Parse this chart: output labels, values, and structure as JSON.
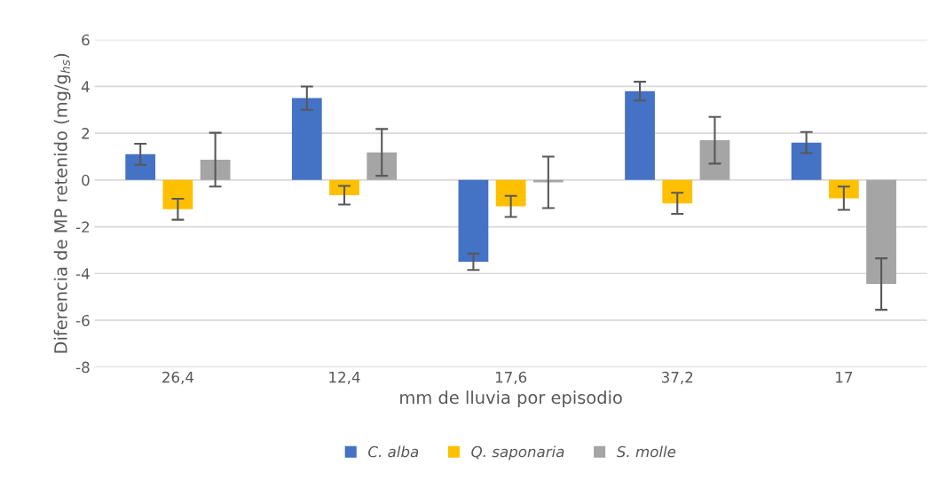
{
  "chart_data": {
    "type": "bar",
    "xlabel": "mm de lluvia por episodio",
    "ylabel": "Diferencia de MP retenido (mg/g$_{hs}$)",
    "categories": [
      "26,4",
      "12,4",
      "17,6",
      "37,2",
      "17"
    ],
    "series": [
      {
        "name": "C. alba",
        "color": "#4472c4",
        "values": [
          1.1,
          3.5,
          -3.5,
          3.8,
          1.6
        ],
        "errors": [
          0.45,
          0.5,
          0.35,
          0.4,
          0.45
        ]
      },
      {
        "name": "Q. saponaria",
        "color": "#ffc000",
        "values": [
          -1.25,
          -0.65,
          -1.13,
          -1.0,
          -0.78
        ],
        "errors": [
          0.45,
          0.4,
          0.45,
          0.45,
          0.5
        ]
      },
      {
        "name": "S. molle",
        "color": "#a5a5a5",
        "values": [
          0.87,
          1.18,
          -0.1,
          1.7,
          -4.45
        ],
        "errors": [
          1.15,
          1.0,
          1.1,
          1.0,
          1.1
        ]
      }
    ],
    "ylim": [
      -8,
      6
    ],
    "yticks": [
      {
        "value": -8,
        "label": "-8"
      },
      {
        "value": -6,
        "label": "-6"
      },
      {
        "value": -4,
        "label": "-4"
      },
      {
        "value": -2,
        "label": "-2"
      },
      0,
      2,
      4,
      6
    ],
    "grid": "y",
    "legend": "bottom"
  }
}
